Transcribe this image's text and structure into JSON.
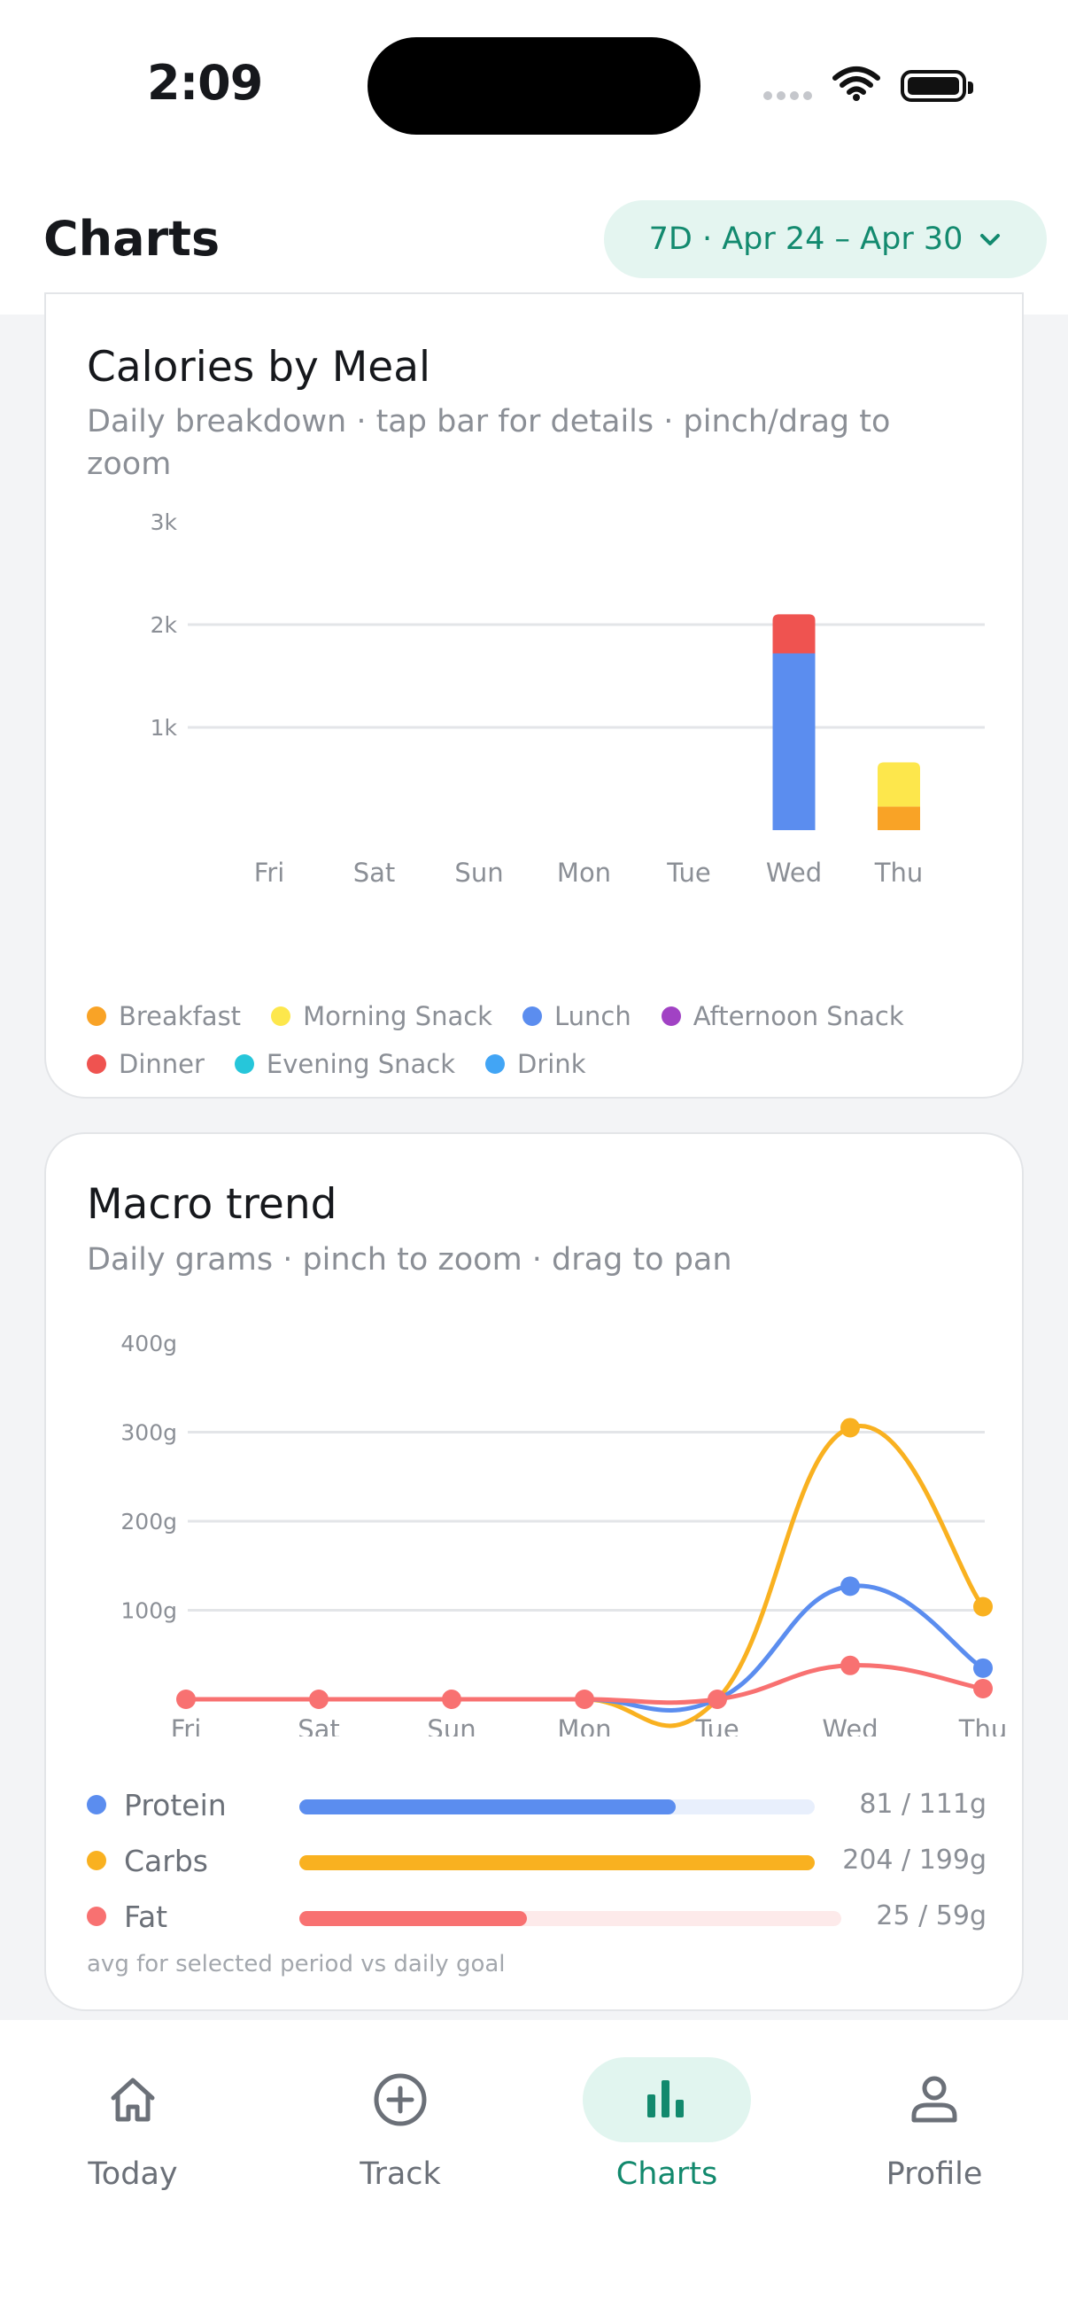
{
  "status_bar": {
    "time": "2:09"
  },
  "header": {
    "title": "Charts",
    "range_label": "7D · Apr 24 – Apr 30"
  },
  "calories_card": {
    "title": "Calories by Meal",
    "subtitle": "Daily breakdown · tap bar for details  ·  pinch/drag to zoom",
    "legend": [
      {
        "label": "Breakfast",
        "color": "#f9a326"
      },
      {
        "label": "Morning Snack",
        "color": "#fde74c"
      },
      {
        "label": "Lunch",
        "color": "#5b8def"
      },
      {
        "label": "Afternoon Snack",
        "color": "#a142c4"
      },
      {
        "label": "Dinner",
        "color": "#ef5350"
      },
      {
        "label": "Evening Snack",
        "color": "#26c6da"
      },
      {
        "label": "Drink",
        "color": "#42a5f5"
      }
    ]
  },
  "macro_card": {
    "title": "Macro trend",
    "subtitle": "Daily grams  ·  pinch to zoom  ·  drag to pan",
    "rows": [
      {
        "name": "Protein",
        "value": "81 / 111g",
        "color": "#5b8def",
        "track": "#e8effc",
        "fraction": 0.73
      },
      {
        "name": "Carbs",
        "value": "204 / 199g",
        "color": "#f9b120",
        "track": "#fdf2dc",
        "fraction": 1.0
      },
      {
        "name": "Fat",
        "value": "25 / 59g",
        "color": "#f87171",
        "track": "#fdeaea",
        "fraction": 0.42
      }
    ],
    "note": "avg for selected period vs daily goal"
  },
  "chart_data": [
    {
      "type": "bar",
      "stacked": true,
      "categories": [
        "Fri",
        "Sat",
        "Sun",
        "Mon",
        "Tue",
        "Wed",
        "Thu"
      ],
      "y_ticks": [
        "1k",
        "2k",
        "3k"
      ],
      "ylim": [
        0,
        3000
      ],
      "grid": true,
      "series": [
        {
          "name": "Breakfast",
          "color": "#f9a326",
          "values": [
            0,
            0,
            0,
            0,
            0,
            0,
            230
          ]
        },
        {
          "name": "Morning Snack",
          "color": "#fde74c",
          "values": [
            0,
            0,
            0,
            0,
            0,
            0,
            430
          ]
        },
        {
          "name": "Lunch",
          "color": "#5b8def",
          "values": [
            0,
            0,
            0,
            0,
            0,
            1720,
            0
          ]
        },
        {
          "name": "Afternoon Snack",
          "color": "#a142c4",
          "values": [
            0,
            0,
            0,
            0,
            0,
            0,
            0
          ]
        },
        {
          "name": "Dinner",
          "color": "#ef5350",
          "values": [
            0,
            0,
            0,
            0,
            0,
            380,
            0
          ]
        },
        {
          "name": "Evening Snack",
          "color": "#26c6da",
          "values": [
            0,
            0,
            0,
            0,
            0,
            0,
            0
          ]
        },
        {
          "name": "Drink",
          "color": "#42a5f5",
          "values": [
            0,
            0,
            0,
            0,
            0,
            0,
            0
          ]
        }
      ]
    },
    {
      "type": "line",
      "categories": [
        "Fri",
        "Sat",
        "Sun",
        "Mon",
        "Tue",
        "Wed",
        "Thu"
      ],
      "y_ticks": [
        "100g",
        "200g",
        "300g",
        "400g"
      ],
      "ylim": [
        0,
        400
      ],
      "grid": true,
      "series": [
        {
          "name": "Protein",
          "color": "#5b8def",
          "values": [
            0,
            0,
            0,
            0,
            0,
            127,
            35
          ]
        },
        {
          "name": "Carbs",
          "color": "#f9b120",
          "values": [
            0,
            0,
            0,
            0,
            0,
            305,
            104
          ]
        },
        {
          "name": "Fat",
          "color": "#f87171",
          "values": [
            0,
            0,
            0,
            0,
            0,
            38,
            12
          ]
        }
      ]
    }
  ],
  "tabs": [
    {
      "label": "Today",
      "icon": "home-icon",
      "active": false
    },
    {
      "label": "Track",
      "icon": "plus-circle-icon",
      "active": false
    },
    {
      "label": "Charts",
      "icon": "bar-chart-icon",
      "active": true
    },
    {
      "label": "Profile",
      "icon": "person-icon",
      "active": false
    }
  ]
}
